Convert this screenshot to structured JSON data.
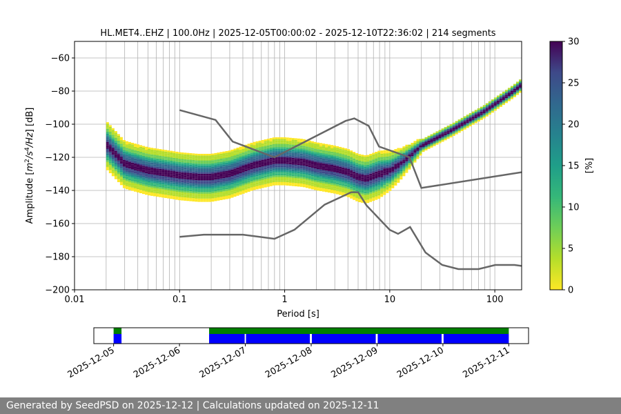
{
  "chart_data": [
    {
      "type": "heatmap",
      "title": "HL.MET4..EHZ | 100.0Hz | 2025-12-05T00:00:02 - 2025-12-10T22:36:02 | 214 segments",
      "xlabel": "Period [s]",
      "ylabel_parts": [
        "Amplitude [",
        "m",
        "2",
        "/",
        "s",
        "4",
        "/",
        "Hz",
        "] [dB]"
      ],
      "xscale": "log",
      "xlim": [
        0.01,
        180
      ],
      "ylim": [
        -200,
        -50
      ],
      "x_ticks": [
        0.01,
        0.1,
        1,
        10,
        100
      ],
      "x_tick_labels": [
        "0.01",
        "0.1",
        "1",
        "10",
        "100"
      ],
      "y_ticks": [
        -200,
        -180,
        -160,
        -140,
        -120,
        -100,
        -80,
        -60
      ],
      "y_tick_labels": [
        "−200",
        "−180",
        "−160",
        "−140",
        "−120",
        "−100",
        "−80",
        "−60"
      ],
      "grid": true,
      "colormap": "viridis_r",
      "colorbar": {
        "label": "[%]",
        "range": [
          0,
          30
        ],
        "ticks": [
          0,
          5,
          10,
          15,
          20,
          25,
          30
        ],
        "tick_labels": [
          "0",
          "5",
          "10",
          "15",
          "20",
          "25",
          "30"
        ]
      },
      "mode_curve": {
        "period": [
          0.02,
          0.03,
          0.05,
          0.08,
          0.1,
          0.15,
          0.2,
          0.3,
          0.5,
          0.8,
          1.0,
          1.5,
          2,
          3,
          4,
          5,
          6,
          8,
          10,
          12,
          15,
          20,
          40,
          80,
          150,
          180
        ],
        "amplitude_db": [
          -112,
          -124,
          -128,
          -130,
          -131,
          -132,
          -132,
          -130,
          -125,
          -122,
          -122,
          -123,
          -125,
          -127,
          -129,
          -132,
          -133,
          -130,
          -128,
          -125,
          -120,
          -113,
          -103,
          -92,
          -80,
          -76
        ]
      },
      "nlnm": {
        "name": "Peterson NLNM",
        "period": [
          0.1,
          0.17,
          0.4,
          0.8,
          1.24,
          2.4,
          4.3,
          5.0,
          6.0,
          10.0,
          12.0,
          15.6,
          21.9,
          31.6,
          45.0,
          70.0,
          101.0,
          154.0,
          180.0
        ],
        "amplitude_db": [
          -168,
          -166.7,
          -166.7,
          -169.2,
          -163.7,
          -148.6,
          -141.1,
          -141.1,
          -149.0,
          -163.8,
          -166.2,
          -162.1,
          -177.5,
          -185.0,
          -187.5,
          -187.5,
          -185.0,
          -185.0,
          -185.6
        ]
      },
      "nhnm": {
        "name": "Peterson NHNM",
        "period": [
          0.1,
          0.22,
          0.32,
          0.8,
          3.8,
          4.6,
          6.3,
          7.9,
          15.4,
          20.0,
          180.0
        ],
        "amplitude_db": [
          -91.5,
          -97.4,
          -110.5,
          -120.0,
          -98.0,
          -96.5,
          -101.0,
          -113.5,
          -120.0,
          -138.5,
          -129.0
        ]
      },
      "timeline": {
        "dates": [
          "2025-12-05",
          "2025-12-06",
          "2025-12-07",
          "2025-12-08",
          "2025-12-09",
          "2025-12-10",
          "2025-12-11"
        ],
        "range_days": [
          -0.3,
          6.3
        ],
        "data_available": [
          [
            0.0,
            0.12
          ],
          [
            1.45,
            6.0
          ]
        ],
        "used_segments": [
          [
            0.0,
            0.12
          ],
          [
            1.45,
            1.99
          ],
          [
            2.01,
            2.98
          ],
          [
            3.01,
            3.98
          ],
          [
            4.01,
            4.98
          ],
          [
            5.01,
            6.0
          ]
        ],
        "available_color": "#008000",
        "used_color": "#0000ff"
      }
    }
  ],
  "footer": "Generated by SeedPSD on 2025-12-12 | Calculations updated on 2025-12-11"
}
